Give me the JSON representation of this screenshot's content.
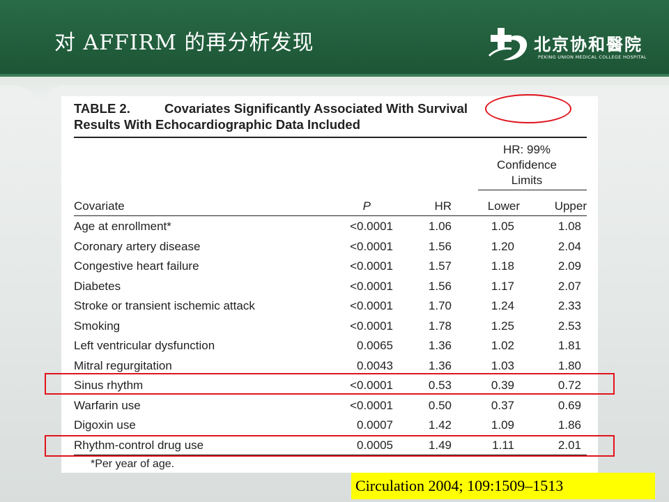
{
  "slide": {
    "title": "对 AFFIRM 的再分析发现",
    "logo": {
      "name_cn": "北京协和醫院",
      "name_en": "PEKING UNION MEDICAL COLLEGE HOSPITAL"
    },
    "citation": "Circulation 2004; 109:1509–1513",
    "accent_color": "#1e5c3a",
    "highlight_color": "#e0141c"
  },
  "table": {
    "label": "TABLE 2.",
    "title_line1": "Covariates Significantly Associated With Survival",
    "title_line2": "Results With Echocardiographic Data Included",
    "group_header": {
      "line1": "HR: 99%",
      "line2": "Confidence",
      "line3": "Limits"
    },
    "columns": [
      "Covariate",
      "P",
      "HR",
      "Lower",
      "Upper"
    ],
    "rows": [
      {
        "covariate": "Age at enrollment*",
        "p": "<0.0001",
        "hr": "1.06",
        "lower": "1.05",
        "upper": "1.08"
      },
      {
        "covariate": "Coronary artery disease",
        "p": "<0.0001",
        "hr": "1.56",
        "lower": "1.20",
        "upper": "2.04"
      },
      {
        "covariate": "Congestive heart failure",
        "p": "<0.0001",
        "hr": "1.57",
        "lower": "1.18",
        "upper": "2.09"
      },
      {
        "covariate": "Diabetes",
        "p": "<0.0001",
        "hr": "1.56",
        "lower": "1.17",
        "upper": "2.07"
      },
      {
        "covariate": "Stroke or transient ischemic attack",
        "p": "<0.0001",
        "hr": "1.70",
        "lower": "1.24",
        "upper": "2.33"
      },
      {
        "covariate": "Smoking",
        "p": "<0.0001",
        "hr": "1.78",
        "lower": "1.25",
        "upper": "2.53"
      },
      {
        "covariate": "Left ventricular dysfunction",
        "p": "0.0065",
        "hr": "1.36",
        "lower": "1.02",
        "upper": "1.81"
      },
      {
        "covariate": "Mitral regurgitation",
        "p": "0.0043",
        "hr": "1.36",
        "lower": "1.03",
        "upper": "1.80"
      },
      {
        "covariate": "Sinus rhythm",
        "p": "<0.0001",
        "hr": "0.53",
        "lower": "0.39",
        "upper": "0.72"
      },
      {
        "covariate": "Warfarin use",
        "p": "<0.0001",
        "hr": "0.50",
        "lower": "0.37",
        "upper": "0.69"
      },
      {
        "covariate": "Digoxin use",
        "p": "0.0007",
        "hr": "1.42",
        "lower": "1.09",
        "upper": "1.86"
      },
      {
        "covariate": "Rhythm-control drug use",
        "p": "0.0005",
        "hr": "1.49",
        "lower": "1.11",
        "upper": "2.01"
      }
    ],
    "footnote": "*Per year of age.",
    "highlighted_rows": [
      "Sinus rhythm",
      "Rhythm-control drug use"
    ],
    "circled_word": "Survival"
  }
}
